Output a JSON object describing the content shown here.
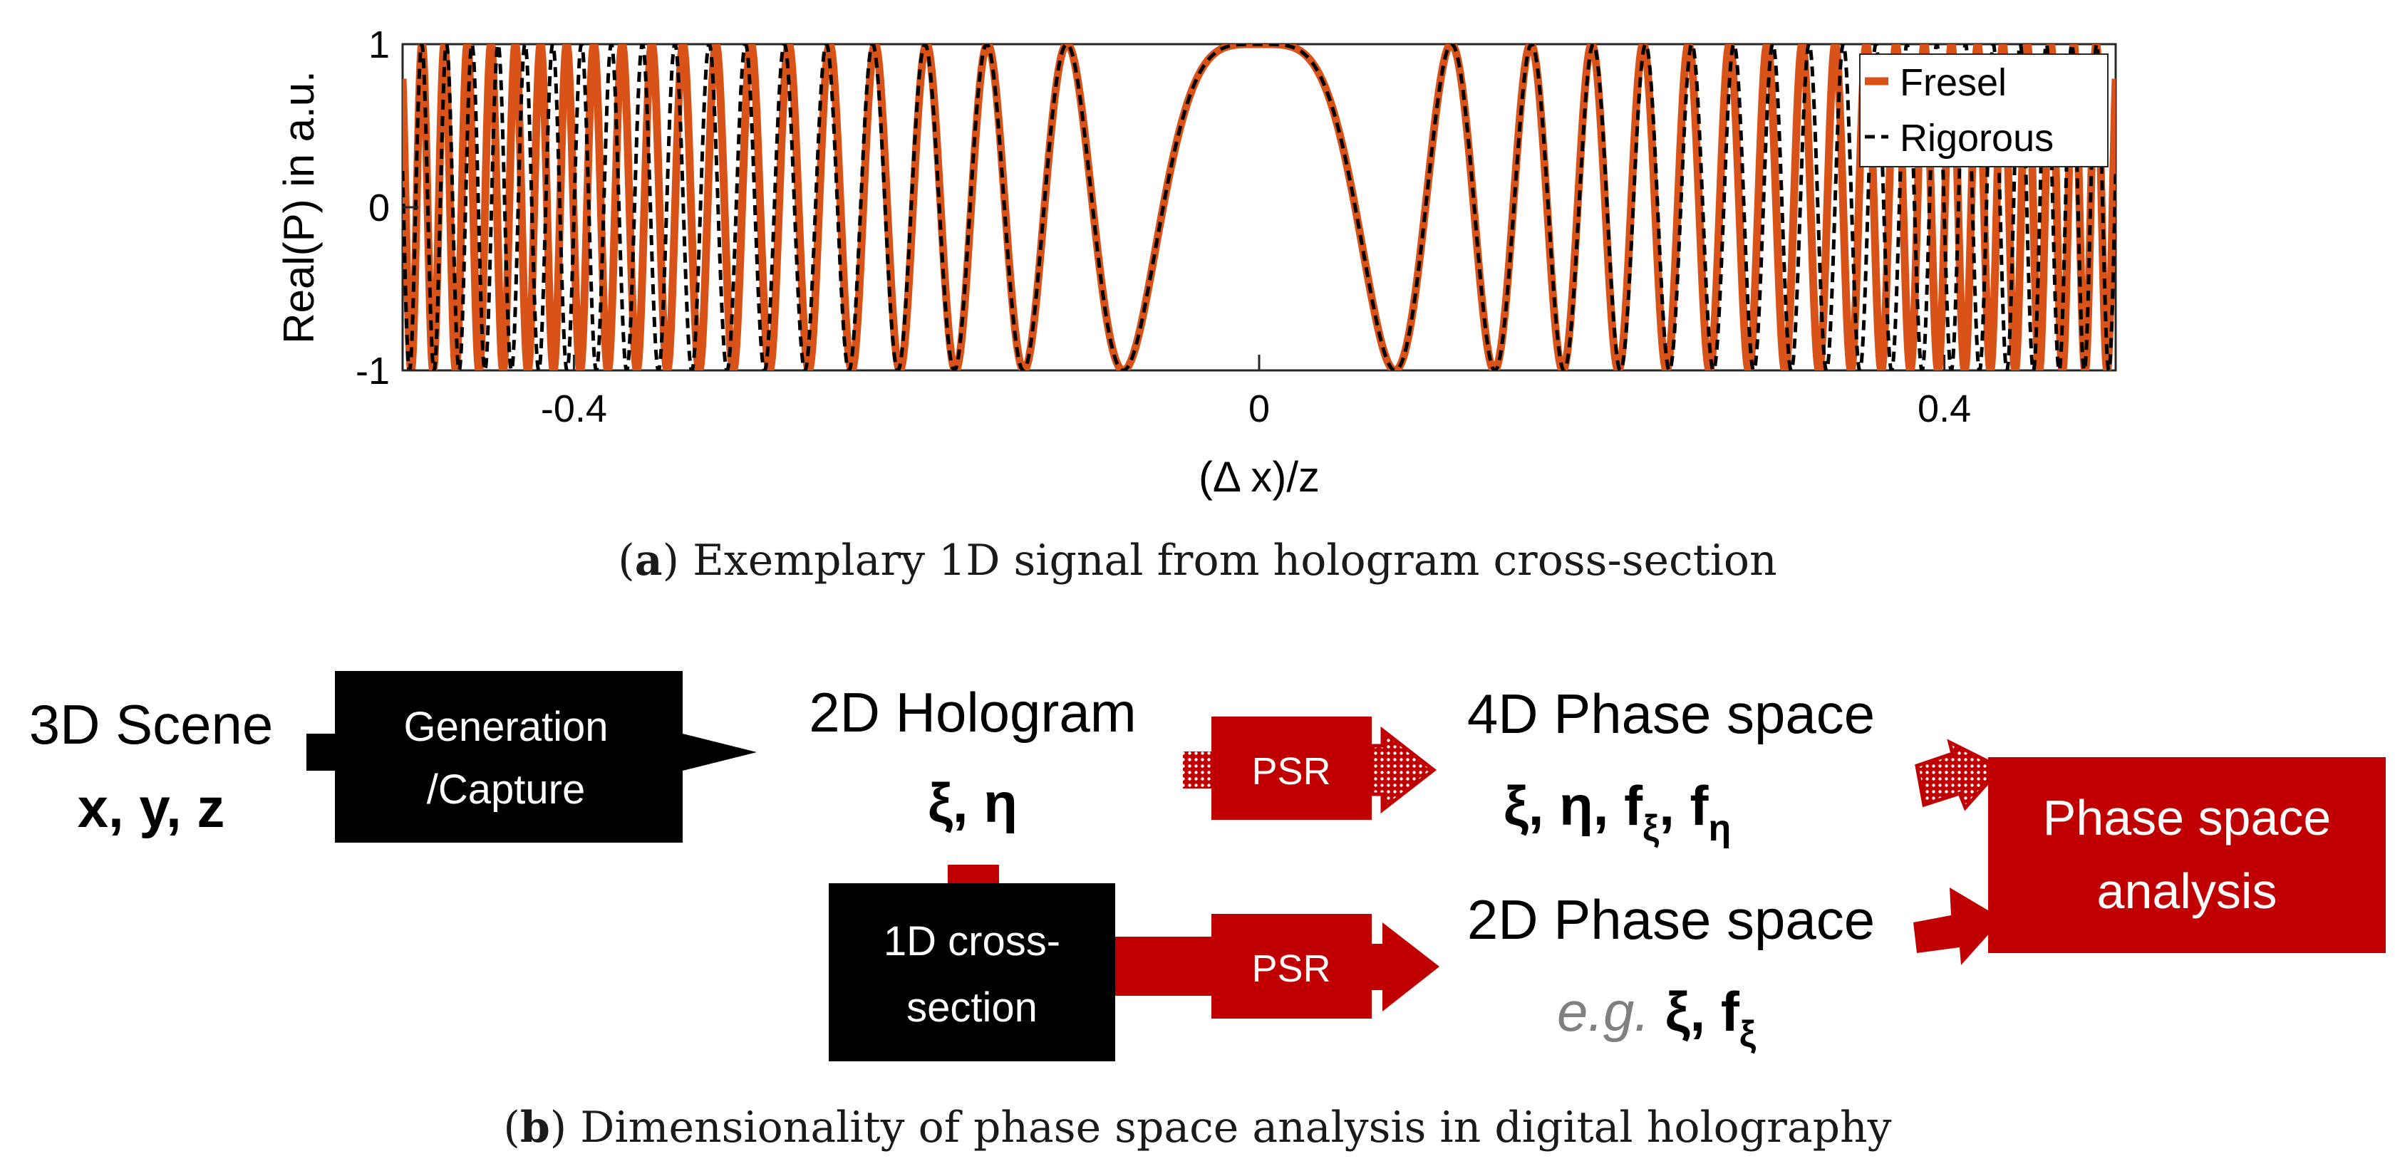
{
  "chart_data": {
    "type": "line",
    "xlabel": "(Δ x)/z",
    "ylabel": "Real(P) in a.u.",
    "xlim": [
      -0.5,
      0.5
    ],
    "ylim": [
      -1,
      1
    ],
    "x_ticks": [
      -0.4,
      0,
      0.4
    ],
    "x_tick_labels": [
      "-0.4",
      "0",
      "0.4"
    ],
    "y_ticks": [
      -1,
      0,
      1
    ],
    "y_tick_labels": [
      "-1",
      "0",
      "1"
    ],
    "grid": false,
    "legend_position": "top-right",
    "series": [
      {
        "name": "Fresel",
        "color": "#d95319",
        "style": "solid",
        "function": "cos(k*u^2/2)",
        "k": 1000
      },
      {
        "name": "Rigorous",
        "color": "#000000",
        "style": "dashed",
        "function": "cos(k*(sqrt(1+u^2)-1))",
        "k": 1000
      }
    ]
  },
  "captions": {
    "a_letter": "a",
    "a_text": "Exemplary 1D signal from hologram cross-section",
    "b_letter": "b",
    "b_text": "Dimensionality of phase space analysis in digital holography"
  },
  "diagram": {
    "scene_title": "3D Scene",
    "scene_vars": "x, y, z",
    "gen_line1": "Generation",
    "gen_line2": "/Capture",
    "holo_title": "2D Hologram",
    "holo_vars": "ξ, η",
    "psr_top": "PSR",
    "ps4d_title": "4D Phase space",
    "ps4d_vars": "ξ, η,  f",
    "ps4d_sub1": "ξ",
    "ps4d_sep": ", f",
    "ps4d_sub2": "η",
    "cross_line1": "1D cross-",
    "cross_line2": "section",
    "psr_bottom": "PSR",
    "ps2d_title": "2D Phase space",
    "ps2d_eg": "e.g.",
    "ps2d_vars": " ξ, f",
    "ps2d_sub": "ξ",
    "analysis_line1": "Phase space",
    "analysis_line2": "analysis"
  },
  "colors": {
    "fresnel": "#d95319",
    "rigorous": "#000000",
    "dark_red": "#c00000",
    "block": "#000000"
  }
}
